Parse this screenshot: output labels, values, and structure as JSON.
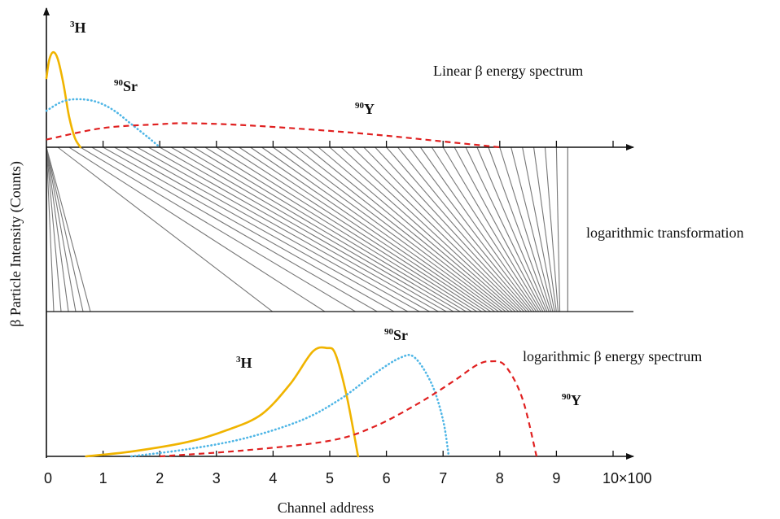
{
  "chart_data": {
    "type": "line",
    "ylabel": "β Particle Intensity (Counts)",
    "xlabel": "Channel address",
    "x_ticks": [
      "0",
      "1",
      "2",
      "3",
      "4",
      "5",
      "6",
      "7",
      "8",
      "9",
      "10×100"
    ],
    "xlim": [
      0,
      10
    ],
    "colors": {
      "3H": "#f0b400",
      "90Sr": "#4fb6e6",
      "90Y": "#e02020",
      "axis": "#111111",
      "mapping": "#777777"
    },
    "panels": [
      {
        "name": "linear",
        "annotation": "Linear β energy spectrum",
        "series": [
          {
            "name": "³H",
            "label_pre": "3",
            "label_main": "H",
            "color": "#f0b400",
            "style": "solid",
            "points": [
              [
                0.0,
                0.72
              ],
              [
                0.05,
                0.91
              ],
              [
                0.12,
                0.99
              ],
              [
                0.2,
                0.92
              ],
              [
                0.3,
                0.66
              ],
              [
                0.4,
                0.32
              ],
              [
                0.5,
                0.1
              ],
              [
                0.6,
                0.0
              ]
            ]
          },
          {
            "name": "⁹⁰Sr",
            "label_pre": "90",
            "label_main": "Sr",
            "color": "#4fb6e6",
            "style": "dotted",
            "points": [
              [
                0.0,
                0.38
              ],
              [
                0.3,
                0.48
              ],
              [
                0.6,
                0.5
              ],
              [
                0.9,
                0.47
              ],
              [
                1.2,
                0.38
              ],
              [
                1.5,
                0.24
              ],
              [
                1.8,
                0.1
              ],
              [
                2.0,
                0.0
              ]
            ]
          },
          {
            "name": "⁹⁰Y",
            "label_pre": "90",
            "label_main": "Y",
            "color": "#e02020",
            "style": "dashed",
            "points": [
              [
                0.0,
                0.08
              ],
              [
                1.0,
                0.2
              ],
              [
                2.0,
                0.24
              ],
              [
                2.5,
                0.25
              ],
              [
                3.5,
                0.23
              ],
              [
                5.0,
                0.17
              ],
              [
                6.0,
                0.12
              ],
              [
                7.0,
                0.06
              ],
              [
                8.0,
                0.0
              ]
            ]
          }
        ]
      },
      {
        "name": "mapping",
        "annotation": "logarithmic transformation"
      },
      {
        "name": "logarithmic",
        "annotation": "logarithmic β energy spectrum",
        "series": [
          {
            "name": "³H",
            "label_pre": "3",
            "label_main": "H",
            "color": "#f0b400",
            "style": "solid",
            "points": [
              [
                0.7,
                0.0
              ],
              [
                1.5,
                0.04
              ],
              [
                2.5,
                0.12
              ],
              [
                3.2,
                0.22
              ],
              [
                3.8,
                0.35
              ],
              [
                4.3,
                0.6
              ],
              [
                4.7,
                0.87
              ],
              [
                4.95,
                0.9
              ],
              [
                5.1,
                0.85
              ],
              [
                5.3,
                0.5
              ],
              [
                5.5,
                0.0
              ]
            ]
          },
          {
            "name": "⁹⁰Sr",
            "label_pre": "90",
            "label_main": "Sr",
            "color": "#4fb6e6",
            "style": "dotted",
            "points": [
              [
                1.5,
                0.0
              ],
              [
                2.5,
                0.06
              ],
              [
                3.5,
                0.15
              ],
              [
                4.5,
                0.3
              ],
              [
                5.2,
                0.48
              ],
              [
                5.8,
                0.69
              ],
              [
                6.25,
                0.82
              ],
              [
                6.5,
                0.82
              ],
              [
                6.8,
                0.6
              ],
              [
                7.0,
                0.3
              ],
              [
                7.1,
                0.0
              ]
            ]
          },
          {
            "name": "⁹⁰Y",
            "label_pre": "90",
            "label_main": "Y",
            "color": "#e02020",
            "style": "dashed",
            "points": [
              [
                2.0,
                0.0
              ],
              [
                3.5,
                0.05
              ],
              [
                5.0,
                0.13
              ],
              [
                5.8,
                0.25
              ],
              [
                6.6,
                0.45
              ],
              [
                7.2,
                0.63
              ],
              [
                7.6,
                0.76
              ],
              [
                7.85,
                0.79
              ],
              [
                8.1,
                0.75
              ],
              [
                8.4,
                0.48
              ],
              [
                8.65,
                0.0
              ]
            ]
          }
        ]
      }
    ]
  }
}
